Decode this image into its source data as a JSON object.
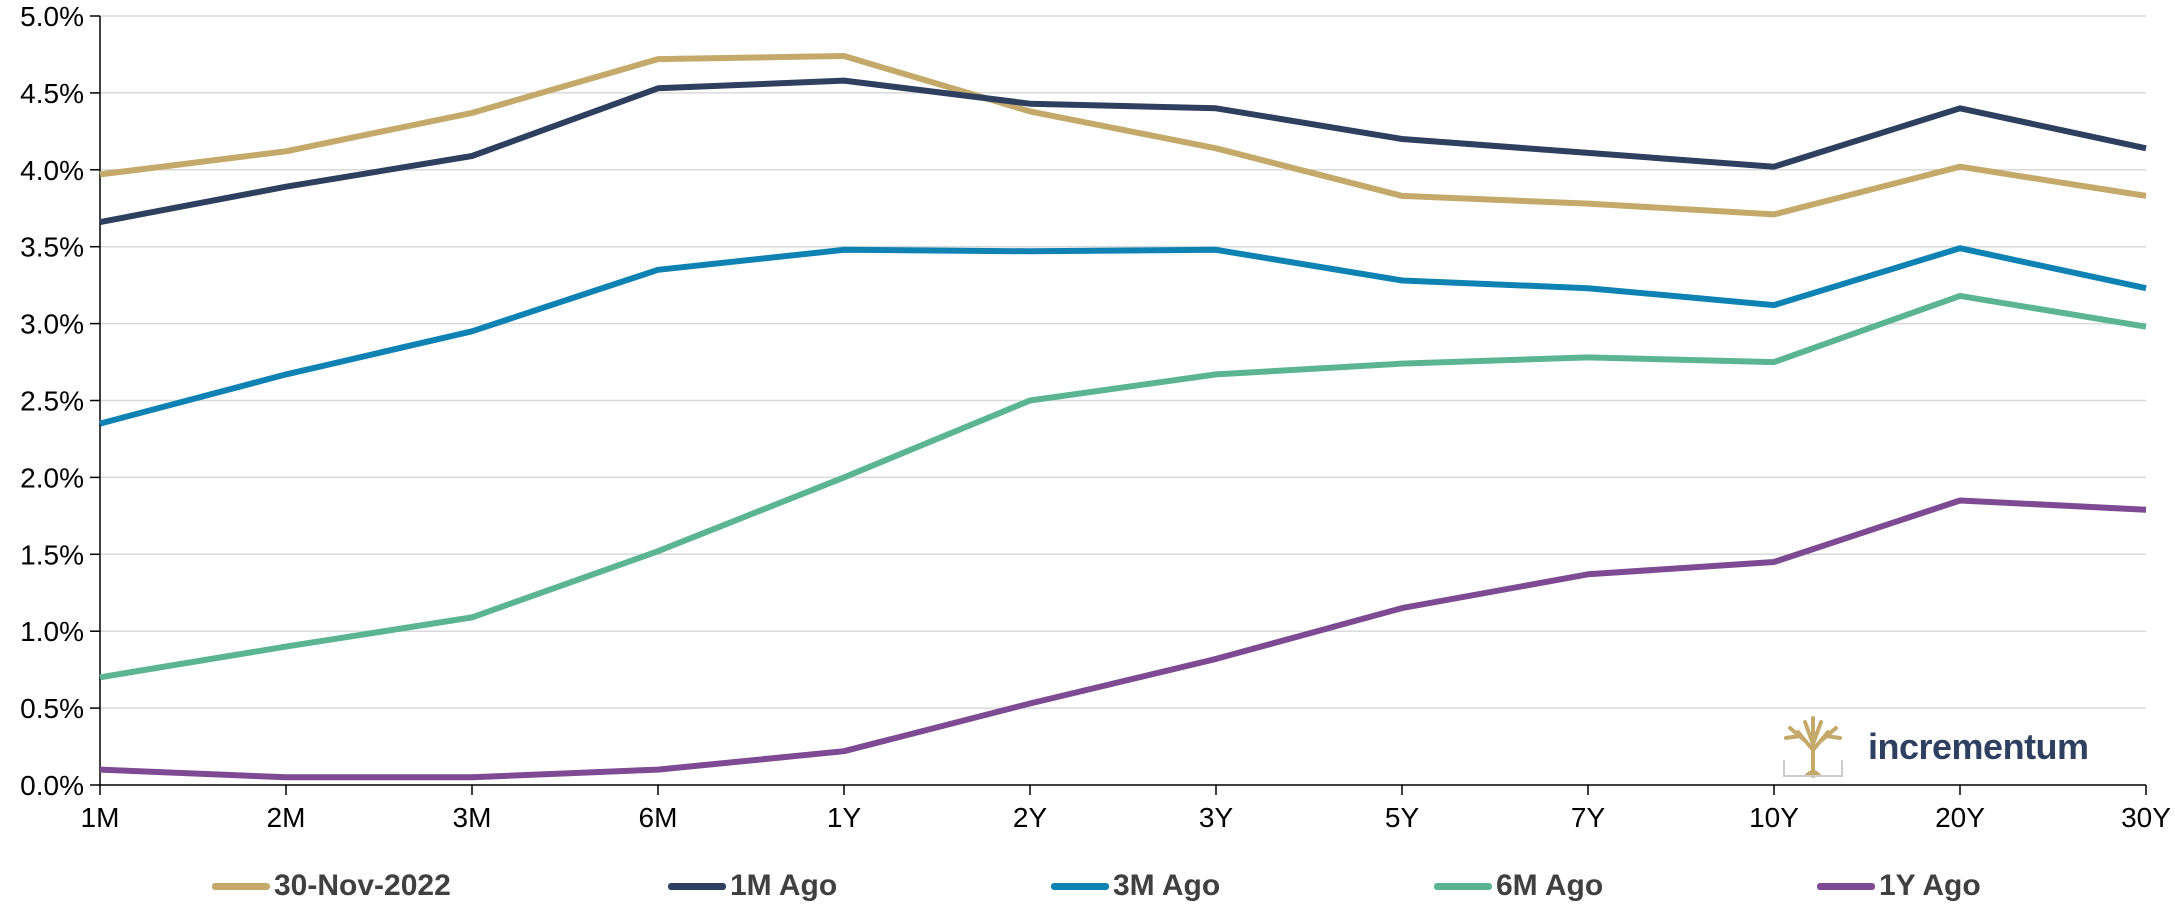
{
  "chart_data": {
    "type": "line",
    "categories": [
      "1M",
      "2M",
      "3M",
      "6M",
      "1Y",
      "2Y",
      "3Y",
      "5Y",
      "7Y",
      "10Y",
      "20Y",
      "30Y"
    ],
    "ylim": [
      0,
      5.0
    ],
    "yticks": [
      "0.0%",
      "0.5%",
      "1.0%",
      "1.5%",
      "2.0%",
      "2.5%",
      "3.0%",
      "3.5%",
      "4.0%",
      "4.5%",
      "5.0%"
    ],
    "ytick_values": [
      0,
      0.5,
      1.0,
      1.5,
      2.0,
      2.5,
      3.0,
      3.5,
      4.0,
      4.5,
      5.0
    ],
    "grid": true,
    "legend_position": "bottom",
    "series": [
      {
        "name": "30-Nov-2022",
        "color": "#c4a96b",
        "values": [
          3.97,
          4.12,
          4.37,
          4.72,
          4.74,
          4.38,
          4.14,
          3.83,
          3.78,
          3.71,
          4.02,
          3.83
        ]
      },
      {
        "name": "1M Ago",
        "color": "#2e3f60",
        "values": [
          3.66,
          3.89,
          4.09,
          4.53,
          4.58,
          4.43,
          4.4,
          4.2,
          4.11,
          4.02,
          4.4,
          4.14
        ]
      },
      {
        "name": "3M Ago",
        "color": "#0f82b4",
        "values": [
          2.35,
          2.67,
          2.95,
          3.35,
          3.48,
          3.47,
          3.48,
          3.28,
          3.23,
          3.12,
          3.49,
          3.23
        ]
      },
      {
        "name": "6M Ago",
        "color": "#5bb592",
        "values": [
          0.7,
          0.9,
          1.09,
          1.52,
          2.0,
          2.5,
          2.67,
          2.74,
          2.78,
          2.75,
          3.18,
          2.98
        ]
      },
      {
        "name": "1Y Ago",
        "color": "#7e4a93",
        "values": [
          0.1,
          0.05,
          0.05,
          0.1,
          0.22,
          0.53,
          0.82,
          1.15,
          1.37,
          1.45,
          1.85,
          1.79
        ]
      }
    ]
  },
  "logo": {
    "text": "incrementum",
    "mark_icon": "tree-icon",
    "mark_color": "#c4a96b"
  }
}
